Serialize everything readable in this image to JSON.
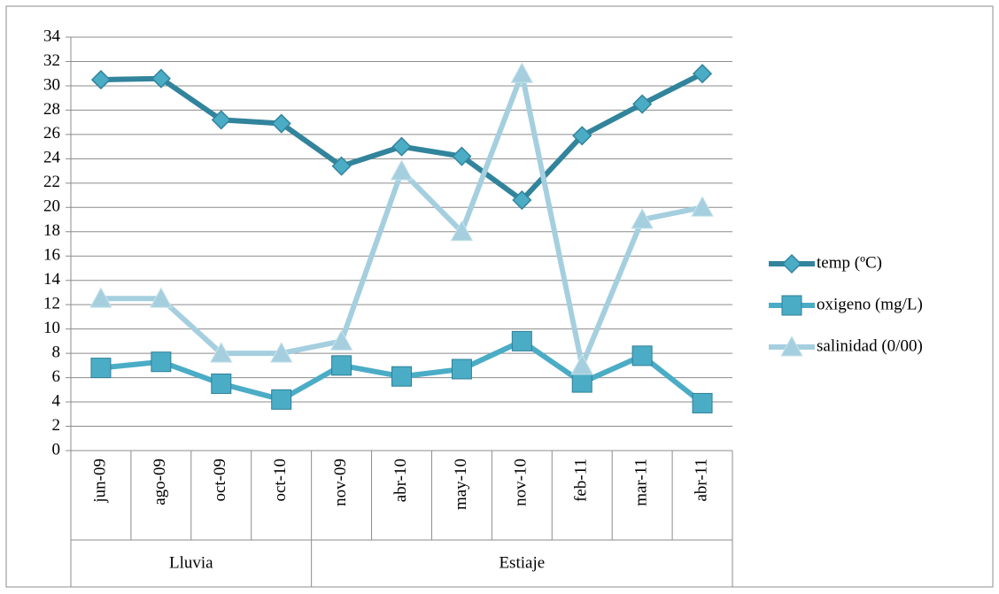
{
  "chart_data": {
    "type": "line",
    "categories": [
      "jun-09",
      "ago-09",
      "oct-09",
      "oct-10",
      "nov-09",
      "abr-10",
      "may-10",
      "nov-10",
      "feb-11",
      "mar-11",
      "abr-11"
    ],
    "group_labels": [
      "Lluvia",
      "Lluvia",
      "Lluvia",
      "Lluvia",
      "Estiaje",
      "Estiaje",
      "Estiaje",
      "Estiaje",
      "Estiaje",
      "Estiaje",
      "Estiaje"
    ],
    "series": [
      {
        "name": "temp (ºC)",
        "color": "#31849b",
        "marker": "diamond",
        "values": [
          30.5,
          30.6,
          27.2,
          26.9,
          23.4,
          25.0,
          24.2,
          20.6,
          25.9,
          28.5,
          31.0
        ]
      },
      {
        "name": "oxigeno (mg/L)",
        "color": "#4bacc6",
        "marker": "square",
        "values": [
          6.8,
          7.3,
          5.5,
          4.2,
          7.0,
          6.1,
          6.7,
          9.0,
          5.6,
          7.8,
          3.9
        ]
      },
      {
        "name": "salinidad (0/00)",
        "color": "#a5cfdf",
        "marker": "triangle",
        "values": [
          12.5,
          12.5,
          8.0,
          8.0,
          9.0,
          23.0,
          18.0,
          31.0,
          7.0,
          19.0,
          20.0
        ]
      }
    ],
    "ylim": [
      0,
      34
    ],
    "yticks": [
      0,
      2,
      4,
      6,
      8,
      10,
      12,
      14,
      16,
      18,
      20,
      22,
      24,
      26,
      28,
      30,
      32,
      34
    ],
    "grid": true,
    "legend": "right"
  }
}
